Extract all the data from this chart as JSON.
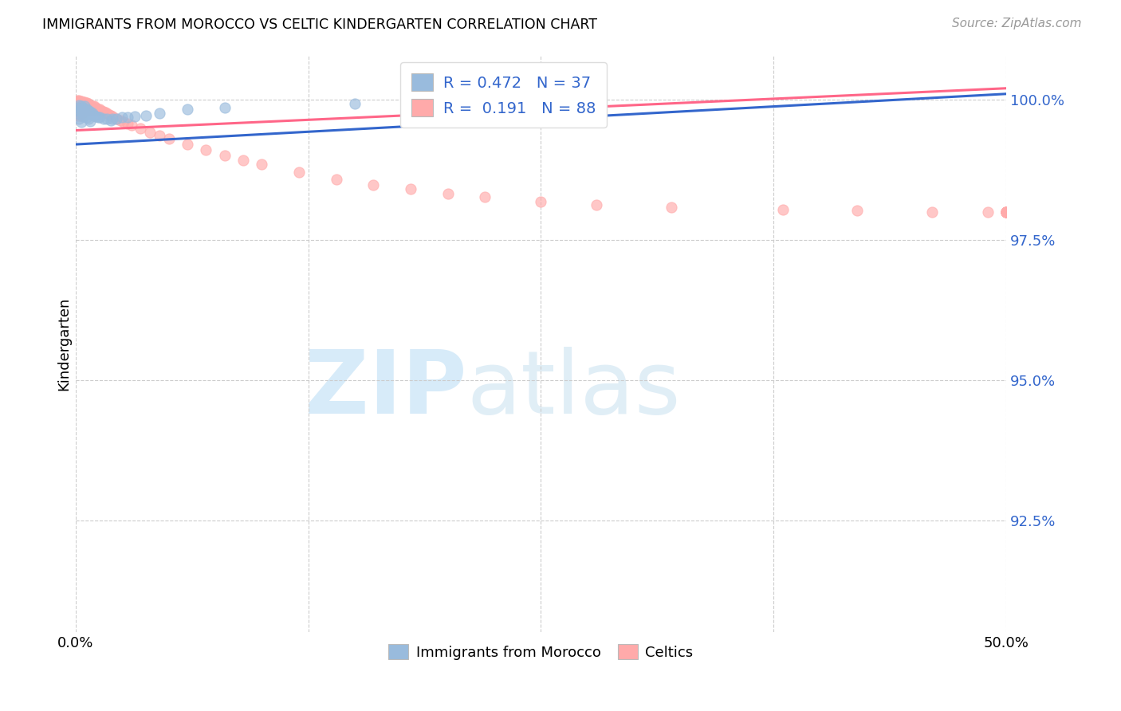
{
  "title": "IMMIGRANTS FROM MOROCCO VS CELTIC KINDERGARTEN CORRELATION CHART",
  "source": "Source: ZipAtlas.com",
  "ylabel": "Kindergarten",
  "ytick_labels": [
    "100.0%",
    "97.5%",
    "95.0%",
    "92.5%"
  ],
  "ytick_values": [
    1.0,
    0.975,
    0.95,
    0.925
  ],
  "xlim": [
    0.0,
    0.5
  ],
  "ylim": [
    0.905,
    1.008
  ],
  "blue_R": 0.472,
  "blue_N": 37,
  "pink_R": 0.191,
  "pink_N": 88,
  "blue_color": "#99BBDD",
  "pink_color": "#FFAAAA",
  "trend_blue": "#3366CC",
  "trend_pink": "#FF6688",
  "blue_scatter_x": [
    0.001,
    0.001,
    0.002,
    0.002,
    0.002,
    0.003,
    0.003,
    0.003,
    0.004,
    0.004,
    0.005,
    0.005,
    0.006,
    0.006,
    0.007,
    0.007,
    0.008,
    0.008,
    0.009,
    0.01,
    0.011,
    0.012,
    0.013,
    0.015,
    0.017,
    0.019,
    0.02,
    0.022,
    0.025,
    0.028,
    0.032,
    0.038,
    0.045,
    0.06,
    0.08,
    0.15,
    0.28
  ],
  "blue_scatter_y": [
    0.9985,
    0.9975,
    0.999,
    0.998,
    0.9965,
    0.9988,
    0.9978,
    0.996,
    0.9985,
    0.997,
    0.9988,
    0.9972,
    0.9982,
    0.9968,
    0.998,
    0.9965,
    0.9978,
    0.9962,
    0.9975,
    0.9972,
    0.997,
    0.9968,
    0.9968,
    0.9965,
    0.9965,
    0.9963,
    0.9965,
    0.9965,
    0.9968,
    0.9968,
    0.997,
    0.9972,
    0.9975,
    0.9982,
    0.9985,
    0.9992,
    0.9998
  ],
  "blue_trendline_x": [
    0.0,
    0.5
  ],
  "blue_trendline_y": [
    0.992,
    1.001
  ],
  "pink_trendline_x": [
    0.0,
    0.5
  ],
  "pink_trendline_y": [
    0.9945,
    1.002
  ],
  "pink_scatter_x": [
    0.001,
    0.001,
    0.001,
    0.001,
    0.001,
    0.001,
    0.001,
    0.001,
    0.002,
    0.002,
    0.002,
    0.002,
    0.002,
    0.002,
    0.002,
    0.003,
    0.003,
    0.003,
    0.003,
    0.003,
    0.003,
    0.004,
    0.004,
    0.004,
    0.004,
    0.004,
    0.005,
    0.005,
    0.005,
    0.005,
    0.006,
    0.006,
    0.006,
    0.007,
    0.007,
    0.007,
    0.008,
    0.008,
    0.009,
    0.009,
    0.01,
    0.01,
    0.011,
    0.012,
    0.013,
    0.014,
    0.015,
    0.016,
    0.017,
    0.018,
    0.019,
    0.02,
    0.022,
    0.024,
    0.026,
    0.028,
    0.03,
    0.035,
    0.04,
    0.045,
    0.05,
    0.06,
    0.07,
    0.08,
    0.09,
    0.1,
    0.12,
    0.14,
    0.16,
    0.18,
    0.2,
    0.22,
    0.25,
    0.28,
    0.32,
    0.38,
    0.42,
    0.46,
    0.49,
    0.5,
    0.5,
    0.5,
    0.5,
    0.5,
    0.5,
    0.5,
    0.5,
    0.5
  ],
  "pink_scatter_y": [
    0.9998,
    0.9995,
    0.9992,
    0.9988,
    0.9985,
    0.9982,
    0.9978,
    0.9972,
    0.9998,
    0.9995,
    0.999,
    0.9987,
    0.9983,
    0.9978,
    0.9972,
    0.9997,
    0.9993,
    0.9989,
    0.9985,
    0.998,
    0.9972,
    0.9996,
    0.9992,
    0.9988,
    0.9983,
    0.9977,
    0.9995,
    0.9991,
    0.9986,
    0.998,
    0.9994,
    0.9989,
    0.9982,
    0.9992,
    0.9987,
    0.998,
    0.999,
    0.9983,
    0.9989,
    0.9981,
    0.9988,
    0.998,
    0.9985,
    0.9983,
    0.9982,
    0.998,
    0.9978,
    0.9977,
    0.9975,
    0.9973,
    0.9971,
    0.997,
    0.9966,
    0.9963,
    0.996,
    0.9957,
    0.9954,
    0.9948,
    0.9942,
    0.9936,
    0.993,
    0.992,
    0.991,
    0.99,
    0.9892,
    0.9884,
    0.987,
    0.9858,
    0.9848,
    0.984,
    0.9832,
    0.9826,
    0.9818,
    0.9812,
    0.9808,
    0.9804,
    0.9802,
    0.98,
    0.98,
    0.98,
    0.98,
    0.98,
    0.98,
    0.98,
    0.98,
    0.98,
    0.98,
    0.98
  ]
}
